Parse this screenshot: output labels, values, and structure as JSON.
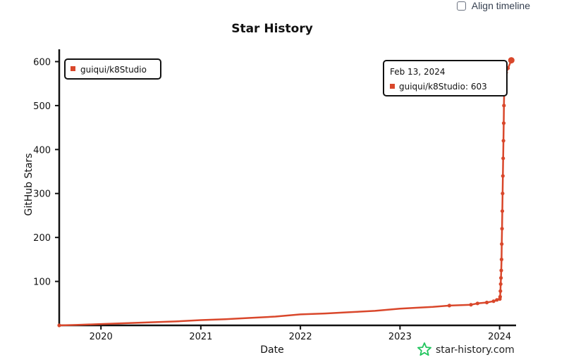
{
  "controls": {
    "align_timeline_label": "Align timeline",
    "align_timeline_checked": false
  },
  "brand": {
    "label": "star-history.com",
    "icon": "star-icon",
    "color": "#22c55e"
  },
  "chart_data": {
    "type": "line",
    "title": "Star History",
    "xlabel": "Date",
    "ylabel": "GitHub Stars",
    "x_ticks": [
      "2020",
      "2021",
      "2022",
      "2023",
      "2024"
    ],
    "y_ticks": [
      100,
      200,
      300,
      400,
      500,
      600
    ],
    "xlim": [
      "2019-08-01",
      "2024-02-20"
    ],
    "ylim": [
      0,
      620
    ],
    "grid": false,
    "legend_position": "top-left",
    "series": [
      {
        "name": "guiqui/k8Studio",
        "color": "#d9472b",
        "x": [
          "2019-08-01",
          "2019-10-01",
          "2020-01-01",
          "2020-04-01",
          "2020-07-01",
          "2020-10-01",
          "2021-01-01",
          "2021-04-01",
          "2021-07-01",
          "2021-10-01",
          "2022-01-01",
          "2022-04-01",
          "2022-07-01",
          "2022-10-01",
          "2023-01-01",
          "2023-03-01",
          "2023-05-01",
          "2023-07-01",
          "2023-09-18",
          "2023-10-12",
          "2023-11-15",
          "2023-12-10",
          "2023-12-22",
          "2024-01-02",
          "2024-01-03",
          "2024-01-04",
          "2024-01-05",
          "2024-01-06",
          "2024-01-07",
          "2024-01-08",
          "2024-01-09",
          "2024-01-10",
          "2024-01-11",
          "2024-01-12",
          "2024-01-13",
          "2024-01-14",
          "2024-01-15",
          "2024-01-16",
          "2024-01-17",
          "2024-01-18",
          "2024-01-20",
          "2024-01-25",
          "2024-02-01",
          "2024-02-13"
        ],
        "y": [
          0,
          1,
          3,
          5,
          7,
          9,
          12,
          14,
          17,
          20,
          25,
          27,
          30,
          33,
          38,
          40,
          42,
          45,
          47,
          50,
          52,
          55,
          58,
          60,
          65,
          78,
          94,
          108,
          125,
          150,
          185,
          220,
          260,
          300,
          340,
          380,
          420,
          460,
          500,
          540,
          560,
          575,
          585,
          603
        ]
      }
    ],
    "tooltip": {
      "date": "Feb 13, 2024",
      "series": "guiqui/k8Studio",
      "value": 603
    }
  }
}
